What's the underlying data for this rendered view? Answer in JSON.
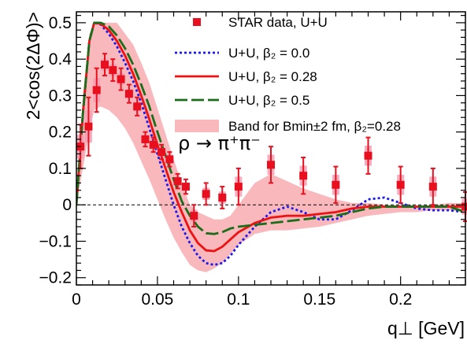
{
  "chart_data": {
    "type": "scatter",
    "xlabel": "q⊥ [GeV]",
    "ylabel": "2<cos(2ΔΦ)>",
    "xlim": [
      0,
      0.24
    ],
    "ylim": [
      -0.22,
      0.53
    ],
    "x_ticks": [
      "0",
      "0.05",
      "0.1",
      "0.15",
      "0.2"
    ],
    "y_ticks": [
      "−0.2",
      "−0.1",
      "0",
      "0.1",
      "0.2",
      "0.3",
      "0.4",
      "0.5"
    ],
    "annotation": "ρ → π⁺π⁻",
    "legend": {
      "placement": "top-right",
      "entries": [
        {
          "key": "data",
          "text": "STAR data, U+U"
        },
        {
          "key": "b0",
          "text": "U+U, β₂ = 0.0"
        },
        {
          "key": "b28",
          "text": "U+U, β₂ = 0.28"
        },
        {
          "key": "b5",
          "text": "U+U, β₂ = 0.5"
        },
        {
          "key": "band",
          "text": "Band for Bmin±2 fm, β₂=0.28"
        }
      ]
    },
    "colors": {
      "data": "#e8101f",
      "data_sys": "#f4a0b4",
      "b0": "#1a1aee",
      "b28": "#ee1111",
      "b5": "#1a6e1a",
      "band": "#f8b8bc",
      "zero_line": "#000000"
    },
    "data_points": [
      {
        "x": 0.0025,
        "y": 0.16,
        "err": 0.06
      },
      {
        "x": 0.0075,
        "y": 0.215,
        "err": 0.08
      },
      {
        "x": 0.0125,
        "y": 0.315,
        "err": 0.06
      },
      {
        "x": 0.0175,
        "y": 0.385,
        "err": 0.03
      },
      {
        "x": 0.0225,
        "y": 0.37,
        "err": 0.03
      },
      {
        "x": 0.0275,
        "y": 0.345,
        "err": 0.03
      },
      {
        "x": 0.0325,
        "y": 0.305,
        "err": 0.025
      },
      {
        "x": 0.0375,
        "y": 0.27,
        "err": 0.025
      },
      {
        "x": 0.0425,
        "y": 0.18,
        "err": 0.02
      },
      {
        "x": 0.0475,
        "y": 0.165,
        "err": 0.02
      },
      {
        "x": 0.0525,
        "y": 0.145,
        "err": 0.02
      },
      {
        "x": 0.0575,
        "y": 0.125,
        "err": 0.02
      },
      {
        "x": 0.0625,
        "y": 0.065,
        "err": 0.02
      },
      {
        "x": 0.0675,
        "y": 0.05,
        "err": 0.02
      },
      {
        "x": 0.0725,
        "y": -0.03,
        "err": 0.03
      },
      {
        "x": 0.08,
        "y": 0.03,
        "err": 0.03
      },
      {
        "x": 0.09,
        "y": 0.02,
        "err": 0.03
      },
      {
        "x": 0.1,
        "y": 0.05,
        "err": 0.05
      },
      {
        "x": 0.12,
        "y": 0.11,
        "err": 0.05
      },
      {
        "x": 0.14,
        "y": 0.08,
        "err": 0.05
      },
      {
        "x": 0.16,
        "y": 0.055,
        "err": 0.05
      },
      {
        "x": 0.18,
        "y": 0.135,
        "err": 0.05
      },
      {
        "x": 0.2,
        "y": 0.055,
        "err": 0.05
      },
      {
        "x": 0.22,
        "y": 0.05,
        "err": 0.05
      },
      {
        "x": 0.24,
        "y": -0.005,
        "err": 0.04
      }
    ],
    "series": [
      {
        "key": "b0",
        "points": [
          [
            0.0,
            0.0
          ],
          [
            0.004,
            0.25
          ],
          [
            0.008,
            0.45
          ],
          [
            0.011,
            0.5
          ],
          [
            0.015,
            0.495
          ],
          [
            0.02,
            0.47
          ],
          [
            0.025,
            0.435
          ],
          [
            0.03,
            0.39
          ],
          [
            0.035,
            0.34
          ],
          [
            0.04,
            0.28
          ],
          [
            0.045,
            0.21
          ],
          [
            0.05,
            0.14
          ],
          [
            0.055,
            0.07
          ],
          [
            0.06,
            0.0
          ],
          [
            0.065,
            -0.06
          ],
          [
            0.07,
            -0.105
          ],
          [
            0.075,
            -0.14
          ],
          [
            0.08,
            -0.16
          ],
          [
            0.085,
            -0.165
          ],
          [
            0.09,
            -0.16
          ],
          [
            0.095,
            -0.14
          ],
          [
            0.1,
            -0.11
          ],
          [
            0.11,
            -0.06
          ],
          [
            0.12,
            -0.02
          ],
          [
            0.13,
            -0.005
          ],
          [
            0.14,
            -0.02
          ],
          [
            0.15,
            -0.04
          ],
          [
            0.16,
            -0.04
          ],
          [
            0.17,
            -0.015
          ],
          [
            0.18,
            0.015
          ],
          [
            0.19,
            0.02
          ],
          [
            0.2,
            0.005
          ],
          [
            0.21,
            -0.01
          ],
          [
            0.22,
            -0.015
          ],
          [
            0.23,
            -0.015
          ],
          [
            0.24,
            -0.02
          ]
        ]
      },
      {
        "key": "b28",
        "points": [
          [
            0.0,
            0.0
          ],
          [
            0.004,
            0.25
          ],
          [
            0.008,
            0.45
          ],
          [
            0.011,
            0.5
          ],
          [
            0.015,
            0.497
          ],
          [
            0.02,
            0.48
          ],
          [
            0.025,
            0.45
          ],
          [
            0.03,
            0.41
          ],
          [
            0.035,
            0.36
          ],
          [
            0.04,
            0.3
          ],
          [
            0.045,
            0.235
          ],
          [
            0.05,
            0.165
          ],
          [
            0.055,
            0.1
          ],
          [
            0.06,
            0.035
          ],
          [
            0.065,
            -0.02
          ],
          [
            0.07,
            -0.07
          ],
          [
            0.075,
            -0.105
          ],
          [
            0.08,
            -0.125
          ],
          [
            0.085,
            -0.127
          ],
          [
            0.09,
            -0.115
          ],
          [
            0.095,
            -0.095
          ],
          [
            0.1,
            -0.075
          ],
          [
            0.11,
            -0.05
          ],
          [
            0.12,
            -0.035
          ],
          [
            0.13,
            -0.03
          ],
          [
            0.14,
            -0.03
          ],
          [
            0.15,
            -0.025
          ],
          [
            0.16,
            -0.02
          ],
          [
            0.17,
            -0.01
          ],
          [
            0.18,
            -0.005
          ],
          [
            0.19,
            -0.005
          ],
          [
            0.2,
            -0.005
          ],
          [
            0.21,
            -0.005
          ],
          [
            0.22,
            -0.005
          ],
          [
            0.23,
            -0.005
          ],
          [
            0.24,
            -0.005
          ]
        ]
      },
      {
        "key": "b5",
        "points": [
          [
            0.0,
            0.0
          ],
          [
            0.004,
            0.25
          ],
          [
            0.008,
            0.45
          ],
          [
            0.011,
            0.5
          ],
          [
            0.015,
            0.5
          ],
          [
            0.02,
            0.49
          ],
          [
            0.025,
            0.465
          ],
          [
            0.03,
            0.43
          ],
          [
            0.035,
            0.385
          ],
          [
            0.04,
            0.33
          ],
          [
            0.045,
            0.27
          ],
          [
            0.05,
            0.2
          ],
          [
            0.055,
            0.135
          ],
          [
            0.06,
            0.07
          ],
          [
            0.065,
            0.01
          ],
          [
            0.07,
            -0.03
          ],
          [
            0.075,
            -0.06
          ],
          [
            0.08,
            -0.078
          ],
          [
            0.085,
            -0.08
          ],
          [
            0.09,
            -0.075
          ],
          [
            0.095,
            -0.065
          ],
          [
            0.1,
            -0.06
          ],
          [
            0.11,
            -0.055
          ],
          [
            0.12,
            -0.05
          ],
          [
            0.13,
            -0.045
          ],
          [
            0.14,
            -0.04
          ],
          [
            0.15,
            -0.035
          ],
          [
            0.16,
            -0.03
          ],
          [
            0.17,
            -0.02
          ],
          [
            0.18,
            -0.01
          ],
          [
            0.19,
            -0.005
          ],
          [
            0.2,
            -0.005
          ],
          [
            0.21,
            -0.005
          ],
          [
            0.22,
            -0.005
          ],
          [
            0.23,
            -0.005
          ],
          [
            0.24,
            -0.02
          ]
        ]
      }
    ],
    "band": {
      "upper": [
        [
          0.0,
          0.0
        ],
        [
          0.004,
          0.3
        ],
        [
          0.008,
          0.47
        ],
        [
          0.011,
          0.5
        ],
        [
          0.015,
          0.5
        ],
        [
          0.02,
          0.5
        ],
        [
          0.025,
          0.5
        ],
        [
          0.03,
          0.47
        ],
        [
          0.035,
          0.44
        ],
        [
          0.04,
          0.39
        ],
        [
          0.045,
          0.335
        ],
        [
          0.05,
          0.265
        ],
        [
          0.055,
          0.195
        ],
        [
          0.06,
          0.125
        ],
        [
          0.065,
          0.06
        ],
        [
          0.07,
          0.0
        ],
        [
          0.075,
          -0.02
        ],
        [
          0.08,
          -0.03
        ],
        [
          0.085,
          -0.04
        ],
        [
          0.09,
          -0.04
        ],
        [
          0.095,
          -0.03
        ],
        [
          0.1,
          0.0
        ],
        [
          0.11,
          0.06
        ],
        [
          0.12,
          0.085
        ],
        [
          0.13,
          0.065
        ],
        [
          0.14,
          0.045
        ],
        [
          0.15,
          0.03
        ],
        [
          0.16,
          0.015
        ],
        [
          0.17,
          0.005
        ],
        [
          0.18,
          0.005
        ],
        [
          0.19,
          0.0
        ],
        [
          0.2,
          -0.005
        ],
        [
          0.21,
          -0.005
        ],
        [
          0.22,
          0.0
        ],
        [
          0.23,
          0.005
        ],
        [
          0.24,
          0.005
        ]
      ],
      "lower": [
        [
          0.0,
          0.0
        ],
        [
          0.004,
          0.1
        ],
        [
          0.008,
          0.2
        ],
        [
          0.011,
          0.26
        ],
        [
          0.015,
          0.27
        ],
        [
          0.02,
          0.26
        ],
        [
          0.025,
          0.24
        ],
        [
          0.03,
          0.21
        ],
        [
          0.035,
          0.17
        ],
        [
          0.04,
          0.12
        ],
        [
          0.045,
          0.07
        ],
        [
          0.05,
          0.015
        ],
        [
          0.055,
          -0.04
        ],
        [
          0.06,
          -0.09
        ],
        [
          0.065,
          -0.13
        ],
        [
          0.07,
          -0.165
        ],
        [
          0.075,
          -0.18
        ],
        [
          0.08,
          -0.185
        ],
        [
          0.085,
          -0.175
        ],
        [
          0.09,
          -0.16
        ],
        [
          0.095,
          -0.135
        ],
        [
          0.1,
          -0.11
        ],
        [
          0.11,
          -0.08
        ],
        [
          0.12,
          -0.07
        ],
        [
          0.13,
          -0.07
        ],
        [
          0.14,
          -0.065
        ],
        [
          0.15,
          -0.06
        ],
        [
          0.16,
          -0.05
        ],
        [
          0.17,
          -0.04
        ],
        [
          0.18,
          -0.03
        ],
        [
          0.19,
          -0.025
        ],
        [
          0.2,
          -0.02
        ],
        [
          0.21,
          -0.02
        ],
        [
          0.22,
          -0.015
        ],
        [
          0.23,
          -0.015
        ],
        [
          0.24,
          -0.02
        ]
      ]
    }
  }
}
